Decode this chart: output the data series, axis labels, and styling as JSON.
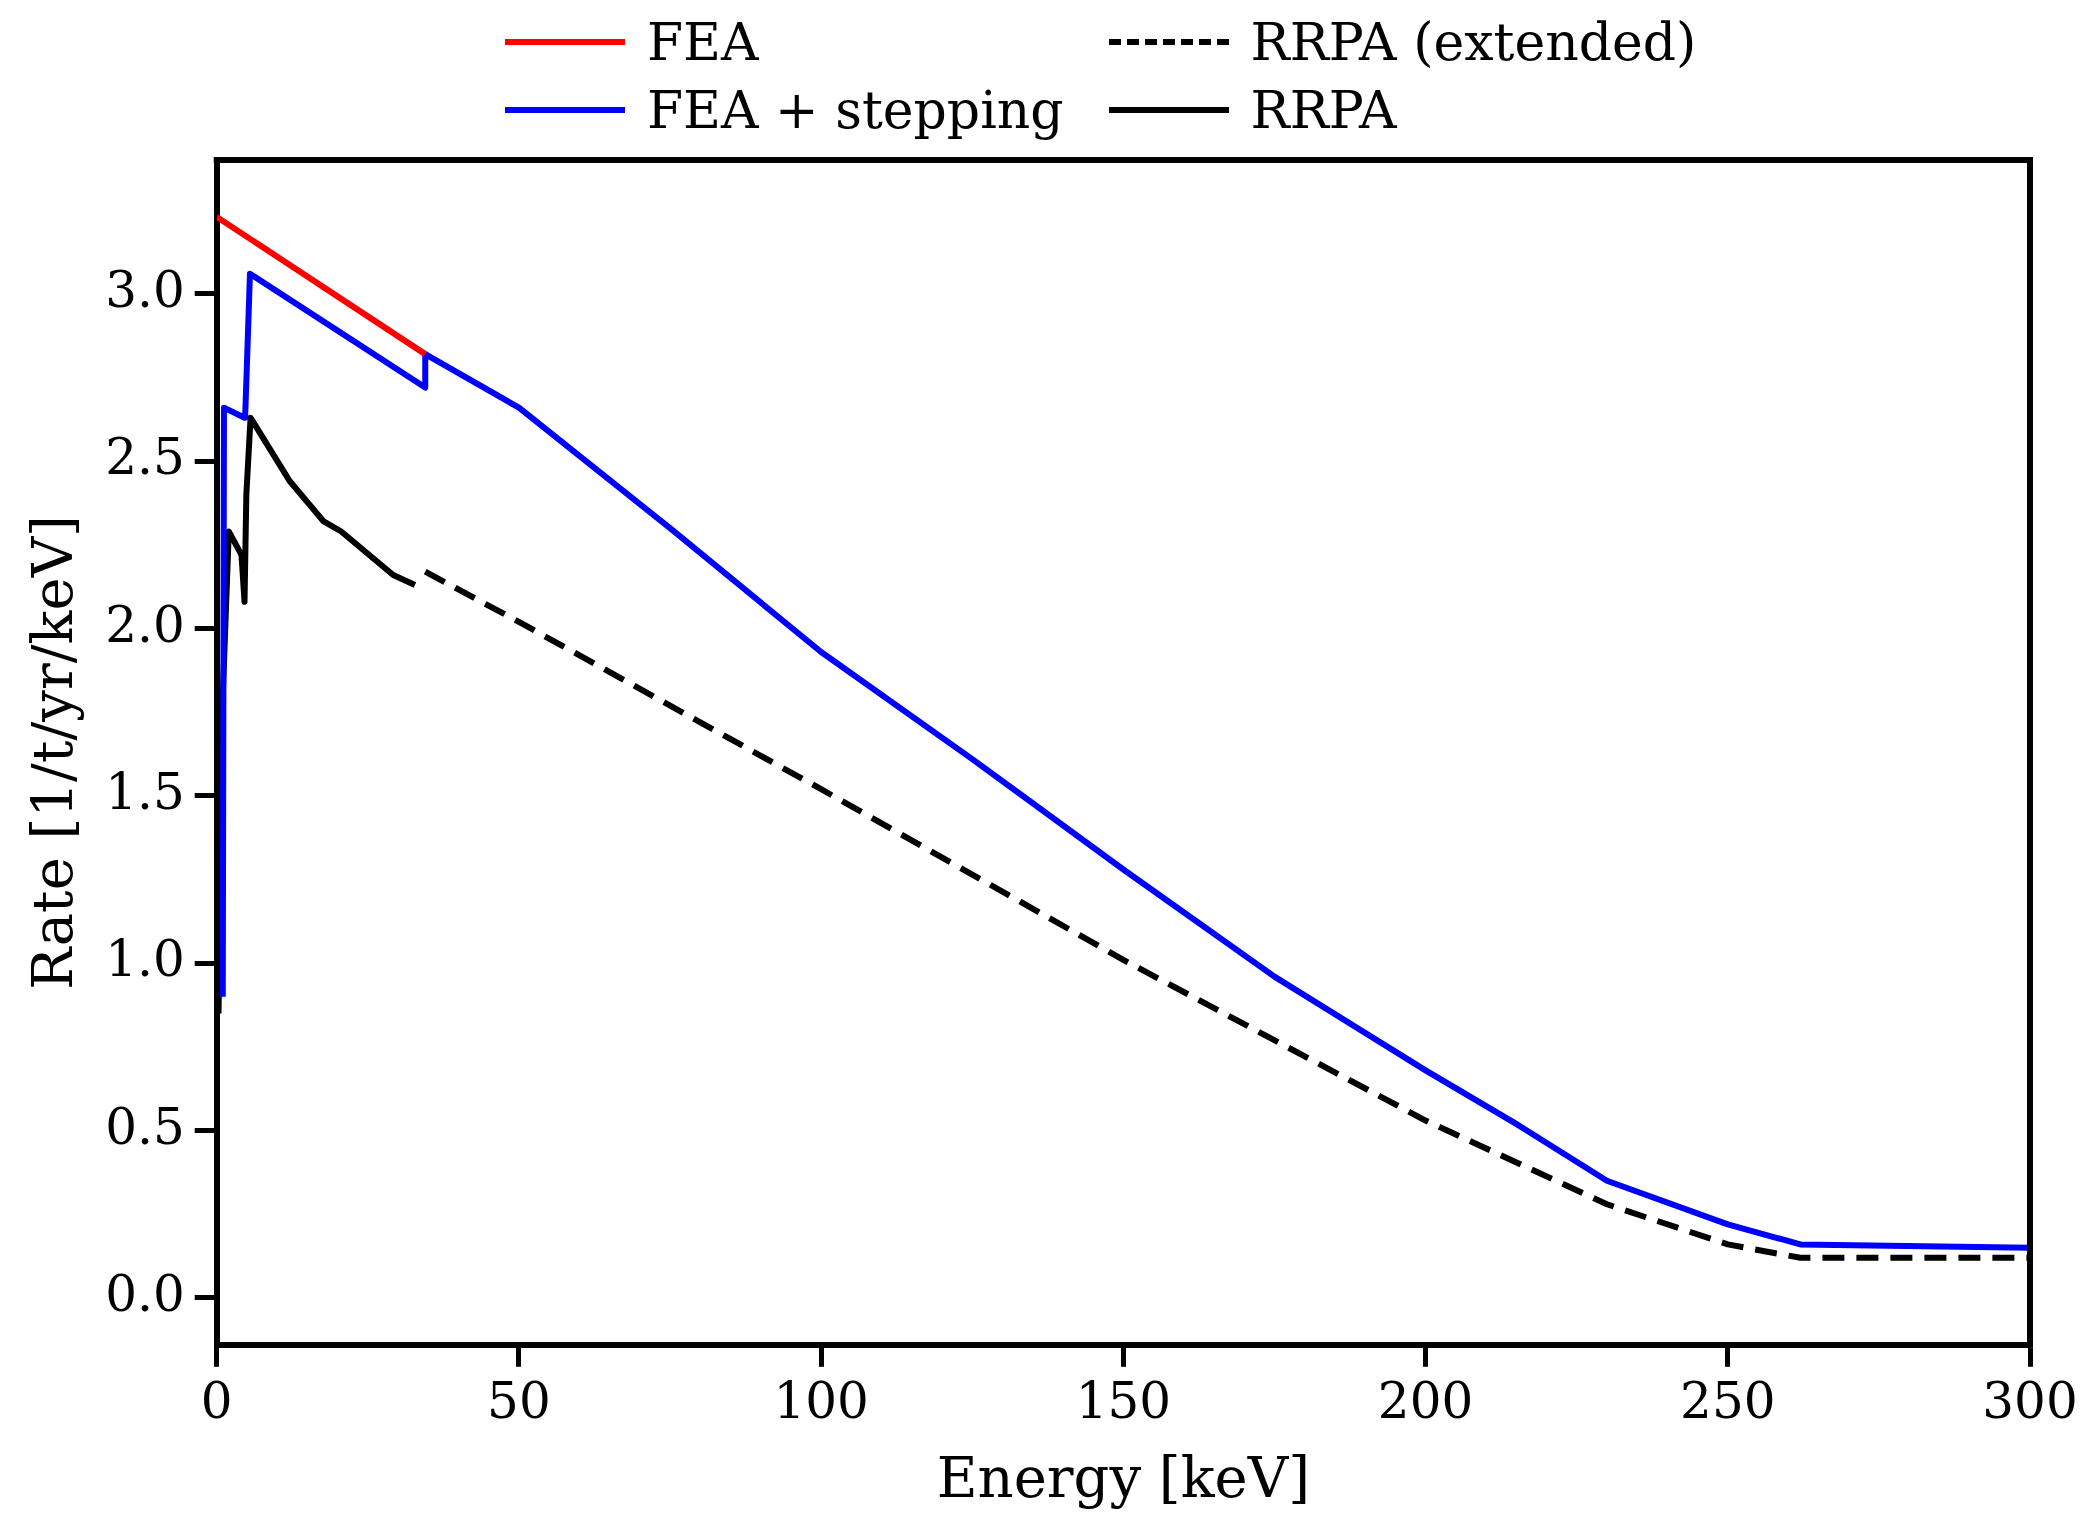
{
  "chart_data": {
    "type": "line",
    "xlabel": "Energy [keV]",
    "ylabel": "Rate [1/t/yr/keV]",
    "xlim": [
      0,
      300
    ],
    "ylim": [
      -0.14,
      3.4
    ],
    "xticks": [
      0,
      50,
      100,
      150,
      200,
      250,
      300
    ],
    "yticks": [
      {
        "value": 0,
        "label": "0.0"
      },
      {
        "value": 0.5,
        "label": "0.5"
      },
      {
        "value": 1,
        "label": "1.0"
      },
      {
        "value": 1.5,
        "label": "1.5"
      },
      {
        "value": 2,
        "label": "2.0"
      },
      {
        "value": 2.5,
        "label": "2.5"
      },
      {
        "value": 3,
        "label": "3.0"
      }
    ],
    "grid": false,
    "legend": "top",
    "series": [
      {
        "name": "FEA",
        "color": "#ff0000",
        "line_style": "solid",
        "x": [
          0,
          34.5
        ],
        "values": [
          3.23,
          2.82
        ]
      },
      {
        "name": "FEA + stepping",
        "color": "#0000ff",
        "line_style": "solid",
        "x": [
          1,
          1.2,
          4.6,
          4.7,
          5.5,
          34.5,
          34.5,
          50,
          75,
          100,
          125,
          150,
          175,
          200,
          215,
          230,
          250,
          262,
          300
        ],
        "values": [
          0.9,
          2.66,
          2.63,
          2.63,
          3.06,
          2.72,
          2.82,
          2.66,
          2.3,
          1.93,
          1.61,
          1.28,
          0.96,
          0.68,
          0.52,
          0.35,
          0.22,
          0.16,
          0.15
        ]
      },
      {
        "name": "RRPA (extended)",
        "color": "#000000",
        "line_style": "dashed",
        "x": [
          34.5,
          50,
          100,
          150,
          200,
          230,
          250,
          262,
          300
        ],
        "values": [
          2.17,
          2.02,
          1.52,
          1.01,
          0.53,
          0.28,
          0.16,
          0.12,
          0.12
        ]
      },
      {
        "name": "RRPA",
        "color": "#000000",
        "line_style": "solid",
        "x": [
          0.3,
          1,
          2,
          4.1,
          4.6,
          4.9,
          5.6,
          12.1,
          17.7,
          20.6,
          29.2,
          32.8
        ],
        "values": [
          0.85,
          1.8,
          2.29,
          2.22,
          2.08,
          2.4,
          2.63,
          2.44,
          2.32,
          2.29,
          2.16,
          2.13
        ]
      }
    ]
  }
}
